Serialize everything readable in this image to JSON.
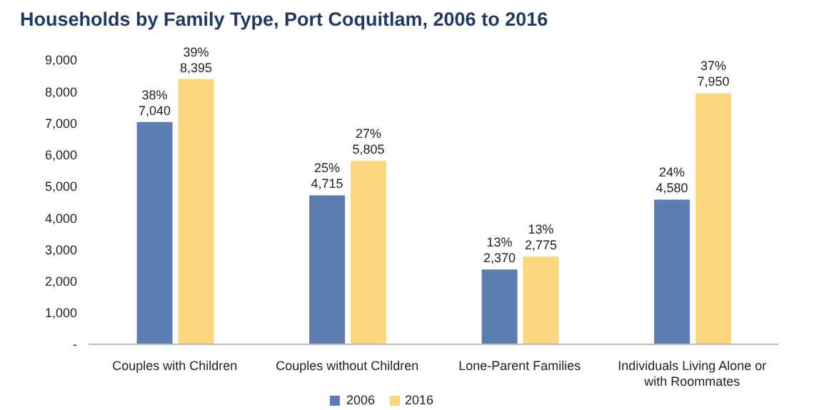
{
  "chart_data": {
    "type": "bar",
    "title": "Households by Family Type, Port Coquitlam, 2006 to 2016",
    "categories": [
      "Couples with Children",
      "Couples without Children",
      "Lone-Parent Families",
      "Individuals Living Alone or with Roommates"
    ],
    "series": [
      {
        "name": "2006",
        "color": "#5b7db1",
        "values": [
          7040,
          4715,
          2370,
          4580
        ],
        "value_labels": [
          "38%\n7,040",
          "25%\n4,715",
          "13%\n2,370",
          "24%\n4,580"
        ]
      },
      {
        "name": "2016",
        "color": "#fdd77e",
        "values": [
          8395,
          5805,
          2775,
          7950
        ],
        "value_labels": [
          "39%\n8,395",
          "27%\n5,805",
          "13%\n2,775",
          "37%\n7,950"
        ]
      }
    ],
    "ylim": [
      0,
      9000
    ],
    "yticks": [
      {
        "value": 0,
        "label": "-"
      },
      {
        "value": 1000,
        "label": "1,000"
      },
      {
        "value": 2000,
        "label": "2,000"
      },
      {
        "value": 3000,
        "label": "3,000"
      },
      {
        "value": 4000,
        "label": "4,000"
      },
      {
        "value": 5000,
        "label": "5,000"
      },
      {
        "value": 6000,
        "label": "6,000"
      },
      {
        "value": 7000,
        "label": "7,000"
      },
      {
        "value": 8000,
        "label": "8,000"
      },
      {
        "value": 9000,
        "label": "9,000"
      }
    ],
    "grid": false,
    "legend": "bottom"
  }
}
